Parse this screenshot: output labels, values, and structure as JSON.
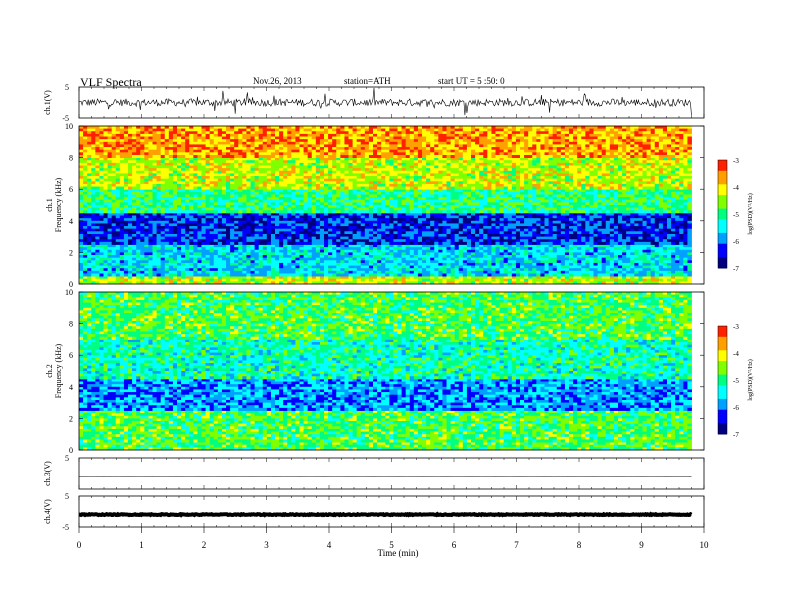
{
  "header": {
    "title": "VLF Spectra",
    "date": "Nov.26, 2013",
    "station": "station=ATH",
    "start": "start UT = 5 :50: 0"
  },
  "chart_data": [
    {
      "type": "line",
      "name": "waveform-ch1",
      "ylabel": "ch.1(V)",
      "ylim": [
        -5,
        5
      ],
      "ytick_labels": [
        "5",
        "-5"
      ],
      "xlim": [
        0,
        10
      ],
      "x_extent_min": [
        0,
        9.8
      ],
      "level": 0,
      "amplitude": 1.2,
      "note_style": "noisy"
    },
    {
      "type": "heatmap",
      "name": "spectrogram-ch1",
      "ylabel": "ch.1\nFrequency (kHz)",
      "ylim": [
        0,
        10
      ],
      "yticks": [
        0,
        2,
        4,
        6,
        8,
        10
      ],
      "ytick_labels": [
        "0",
        "2",
        "4",
        "6",
        "8",
        "10"
      ],
      "xlim": [
        0,
        10
      ],
      "colorbar": {
        "label": "log(PSD)(V²/Hz)",
        "range": [
          -7,
          -3
        ],
        "tick_labels": [
          "-3",
          "-4",
          "-5",
          "-6",
          "-7"
        ]
      },
      "bands_logpsd": [
        {
          "f": [
            0,
            0.5
          ],
          "value": -4.3
        },
        {
          "f": [
            0.5,
            2.5
          ],
          "value": -5.6
        },
        {
          "f": [
            2.5,
            4.5
          ],
          "value": -6.3
        },
        {
          "f": [
            4.5,
            6.0
          ],
          "value": -5.0
        },
        {
          "f": [
            6.0,
            8.0
          ],
          "value": -4.3
        },
        {
          "f": [
            8.0,
            10
          ],
          "value": -3.7
        }
      ]
    },
    {
      "type": "heatmap",
      "name": "spectrogram-ch2",
      "ylabel": "ch.2\nFrequency (kHz)",
      "ylim": [
        0,
        10
      ],
      "yticks": [
        0,
        2,
        4,
        6,
        8,
        10
      ],
      "ytick_labels": [
        "0",
        "2",
        "4",
        "6",
        "8",
        "10"
      ],
      "xlim": [
        0,
        10
      ],
      "colorbar": {
        "label": "log(PSD)(V²/Hz)",
        "range": [
          -7,
          -3
        ],
        "tick_labels": [
          "-3",
          "-4",
          "-5",
          "-6",
          "-7"
        ]
      },
      "bands_logpsd": [
        {
          "f": [
            0,
            0.5
          ],
          "value": -4.8
        },
        {
          "f": [
            0.5,
            2.5
          ],
          "value": -4.8
        },
        {
          "f": [
            2.5,
            4.5
          ],
          "value": -5.9
        },
        {
          "f": [
            4.5,
            7.0
          ],
          "value": -5.2
        },
        {
          "f": [
            7.0,
            10
          ],
          "value": -4.8
        }
      ]
    },
    {
      "type": "line",
      "name": "waveform-ch3",
      "ylabel": "ch.3(V)",
      "ylim": [
        -5,
        5
      ],
      "ytick_labels": [
        "5"
      ],
      "xlim": [
        0,
        10
      ],
      "x_extent_min": [
        0,
        9.8
      ],
      "level": -1.0,
      "amplitude": 0.05,
      "note_style": "flat"
    },
    {
      "type": "line",
      "name": "waveform-ch4",
      "ylabel": "ch.4(V)",
      "ylim": [
        -5,
        5
      ],
      "ytick_labels": [
        "5",
        "-5"
      ],
      "xlim": [
        0,
        10
      ],
      "x_extent_min": [
        0,
        9.8
      ],
      "level": -1.0,
      "amplitude": 0.15,
      "note_style": "thick"
    }
  ],
  "xaxis": {
    "label": "Time (min)",
    "ticks": [
      0,
      1,
      2,
      3,
      4,
      5,
      6,
      7,
      8,
      9,
      10
    ],
    "tick_labels": [
      "0",
      "1",
      "2",
      "3",
      "4",
      "5",
      "6",
      "7",
      "8",
      "9",
      "10"
    ]
  },
  "colors": {
    "colormap": [
      "#000080",
      "#0000ff",
      "#00a0ff",
      "#00ffff",
      "#00ff80",
      "#80ff00",
      "#ffff00",
      "#ffa000",
      "#ff2000",
      "#ffffff"
    ]
  }
}
